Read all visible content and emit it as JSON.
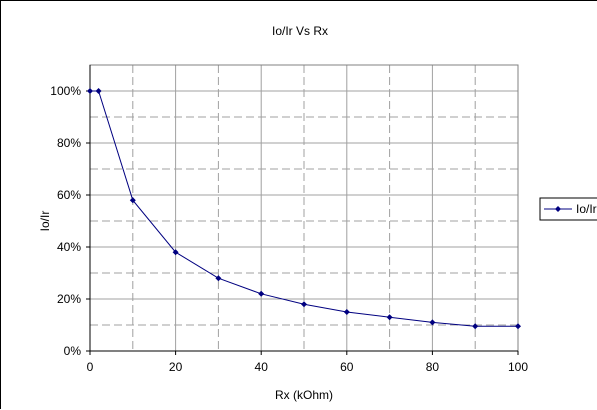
{
  "chart_data": {
    "type": "line",
    "title": "Io/Ir Vs Rx",
    "xlabel": "Rx (kOhm)",
    "ylabel": "Io/Ir",
    "xlim": [
      0,
      100
    ],
    "ylim": [
      0,
      1.1
    ],
    "x_ticks": [
      0,
      20,
      40,
      60,
      80,
      100
    ],
    "x_tick_labels": [
      "0",
      "20",
      "40",
      "60",
      "80",
      "100"
    ],
    "x_minor_step": 10,
    "y_ticks": [
      0,
      0.2,
      0.4,
      0.6,
      0.8,
      1.0
    ],
    "y_tick_labels": [
      "0%",
      "20%",
      "40%",
      "60%",
      "80%",
      "100%"
    ],
    "y_minor_step": 0.1,
    "grid": true,
    "legend_position": "right",
    "series": [
      {
        "name": "Io/Ir",
        "color": "#000080",
        "marker": "diamond",
        "x": [
          0,
          2,
          10,
          20,
          30,
          40,
          50,
          60,
          70,
          80,
          90,
          100
        ],
        "y": [
          1.0,
          1.0,
          0.58,
          0.38,
          0.28,
          0.22,
          0.18,
          0.15,
          0.13,
          0.11,
          0.095,
          0.095
        ]
      }
    ]
  }
}
